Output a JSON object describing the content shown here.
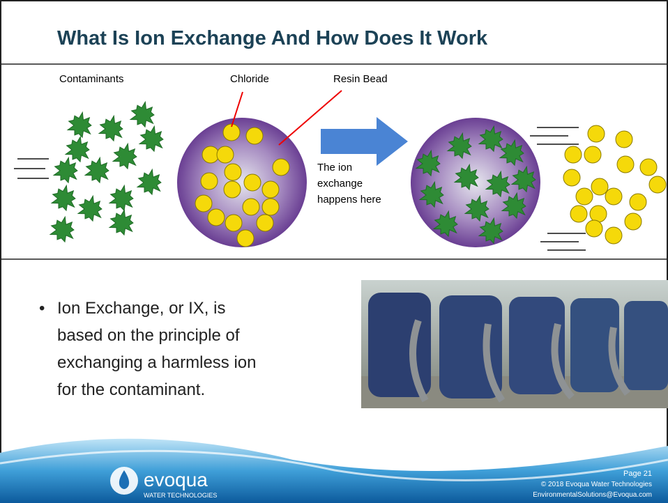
{
  "header": {
    "title": "What Is Ion Exchange And How Does It Work"
  },
  "diagram": {
    "contaminants": "Contaminants",
    "chloride": "Chloride",
    "resin_bead": "Resin Bead",
    "note": [
      "The ion",
      "exchange",
      "happens here"
    ]
  },
  "bullet": {
    "lines": [
      "Ion Exchange, or IX, is",
      "based on the principle of",
      "exchanging a harmless ion",
      "for the contaminant."
    ]
  },
  "footer": {
    "logo": "evoqua",
    "logo_sub": "WATER TECHNOLOGIES",
    "page": "Page 21",
    "copyright": "© 2018 Evoqua Water Technologies",
    "email": "EnvironmentalSolutions@Evoqua.com"
  }
}
